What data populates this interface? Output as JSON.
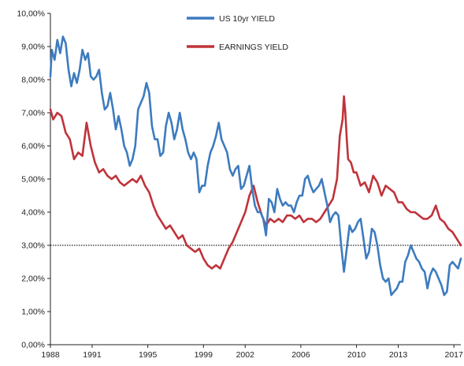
{
  "chart_data": {
    "type": "line",
    "title": "",
    "xlabel": "",
    "ylabel": "",
    "ylim": [
      0,
      10
    ],
    "y_ticks": [
      {
        "value": 0,
        "label": "0,00%"
      },
      {
        "value": 1,
        "label": "1,00%"
      },
      {
        "value": 2,
        "label": "2,00%"
      },
      {
        "value": 3,
        "label": "3,00%"
      },
      {
        "value": 4,
        "label": "4,00%"
      },
      {
        "value": 5,
        "label": "5,00%"
      },
      {
        "value": 6,
        "label": "6,00%"
      },
      {
        "value": 7,
        "label": "7,00%"
      },
      {
        "value": 8,
        "label": "8,00%"
      },
      {
        "value": 9,
        "label": "9,00%"
      },
      {
        "value": 10,
        "label": "10,00%"
      }
    ],
    "xlim": [
      1988,
      2017.5
    ],
    "x_ticks": [
      {
        "value": 1988,
        "label": "1988"
      },
      {
        "value": 1991,
        "label": "1991"
      },
      {
        "value": 1995,
        "label": "1995"
      },
      {
        "value": 1999,
        "label": "1999"
      },
      {
        "value": 2002,
        "label": "2002"
      },
      {
        "value": 2006,
        "label": "2006"
      },
      {
        "value": 2010,
        "label": "2010"
      },
      {
        "value": 2013,
        "label": "2013"
      },
      {
        "value": 2017,
        "label": "2017"
      }
    ],
    "grid": false,
    "legend_position": "top-center",
    "reference_line": {
      "y": 3.0,
      "style": "dotted",
      "color": "#222222"
    },
    "series": [
      {
        "name": "US 10yr YIELD",
        "color": "#3d7bbf",
        "x": [
          1988.0,
          1988.1,
          1988.3,
          1988.5,
          1988.7,
          1988.9,
          1989.1,
          1989.3,
          1989.5,
          1989.7,
          1989.9,
          1990.1,
          1990.3,
          1990.5,
          1990.7,
          1990.9,
          1991.1,
          1991.3,
          1991.5,
          1991.7,
          1991.9,
          1992.1,
          1992.3,
          1992.5,
          1992.7,
          1992.9,
          1993.1,
          1993.3,
          1993.5,
          1993.7,
          1993.9,
          1994.1,
          1994.3,
          1994.5,
          1994.7,
          1994.9,
          1995.1,
          1995.3,
          1995.5,
          1995.7,
          1995.9,
          1996.1,
          1996.3,
          1996.5,
          1996.7,
          1996.9,
          1997.1,
          1997.3,
          1997.5,
          1997.7,
          1997.9,
          1998.1,
          1998.3,
          1998.5,
          1998.7,
          1998.9,
          1999.1,
          1999.3,
          1999.5,
          1999.7,
          1999.9,
          2000.1,
          2000.3,
          2000.5,
          2000.7,
          2000.9,
          2001.1,
          2001.3,
          2001.5,
          2001.7,
          2001.9,
          2002.1,
          2002.3,
          2002.5,
          2002.7,
          2002.9,
          2003.1,
          2003.3,
          2003.5,
          2003.7,
          2003.9,
          2004.1,
          2004.3,
          2004.5,
          2004.7,
          2004.9,
          2005.1,
          2005.3,
          2005.5,
          2005.7,
          2005.9,
          2006.1,
          2006.3,
          2006.5,
          2006.7,
          2006.9,
          2007.1,
          2007.3,
          2007.5,
          2007.7,
          2007.9,
          2008.1,
          2008.3,
          2008.5,
          2008.7,
          2008.9,
          2009.1,
          2009.3,
          2009.5,
          2009.7,
          2009.9,
          2010.1,
          2010.3,
          2010.5,
          2010.7,
          2010.9,
          2011.1,
          2011.3,
          2011.5,
          2011.7,
          2011.9,
          2012.1,
          2012.3,
          2012.5,
          2012.7,
          2012.9,
          2013.1,
          2013.3,
          2013.5,
          2013.7,
          2013.9,
          2014.1,
          2014.3,
          2014.5,
          2014.7,
          2014.9,
          2015.1,
          2015.3,
          2015.5,
          2015.7,
          2015.9,
          2016.1,
          2016.3,
          2016.5,
          2016.7,
          2016.9,
          2017.1,
          2017.3,
          2017.5
        ],
        "values": [
          8.1,
          8.9,
          8.6,
          9.2,
          8.8,
          9.3,
          9.1,
          8.3,
          7.8,
          8.2,
          7.9,
          8.3,
          8.9,
          8.6,
          8.8,
          8.1,
          8.0,
          8.1,
          8.3,
          7.6,
          7.1,
          7.2,
          7.6,
          7.1,
          6.5,
          6.9,
          6.5,
          6.0,
          5.8,
          5.4,
          5.6,
          6.0,
          7.1,
          7.3,
          7.5,
          7.9,
          7.6,
          6.6,
          6.2,
          6.2,
          5.7,
          5.8,
          6.6,
          7.0,
          6.7,
          6.2,
          6.5,
          7.0,
          6.5,
          6.2,
          5.8,
          5.6,
          5.8,
          5.6,
          4.6,
          4.8,
          4.8,
          5.4,
          5.8,
          6.0,
          6.3,
          6.7,
          6.2,
          6.0,
          5.8,
          5.3,
          5.1,
          5.3,
          5.4,
          4.7,
          4.8,
          5.1,
          5.4,
          4.7,
          4.2,
          4.0,
          4.0,
          3.8,
          3.3,
          4.4,
          4.3,
          4.0,
          4.7,
          4.4,
          4.2,
          4.3,
          4.2,
          4.2,
          4.0,
          4.3,
          4.5,
          4.5,
          5.0,
          5.1,
          4.8,
          4.6,
          4.7,
          4.8,
          5.0,
          4.6,
          4.2,
          3.7,
          3.9,
          4.0,
          3.9,
          3.0,
          2.2,
          2.9,
          3.6,
          3.4,
          3.5,
          3.7,
          3.8,
          3.2,
          2.6,
          2.8,
          3.5,
          3.4,
          3.0,
          2.4,
          2.0,
          1.9,
          2.0,
          1.5,
          1.6,
          1.7,
          1.9,
          1.9,
          2.5,
          2.7,
          3.0,
          2.8,
          2.6,
          2.5,
          2.3,
          2.2,
          1.7,
          2.1,
          2.3,
          2.2,
          2.0,
          1.8,
          1.5,
          1.6,
          2.4,
          2.5,
          2.4,
          2.3,
          2.6
        ]
      },
      {
        "name": "EARNINGS YIELD",
        "color": "#c0333a",
        "x": [
          1988.0,
          1988.2,
          1988.5,
          1988.8,
          1989.1,
          1989.4,
          1989.7,
          1990.0,
          1990.3,
          1990.6,
          1990.9,
          1991.2,
          1991.5,
          1991.8,
          1992.1,
          1992.4,
          1992.7,
          1993.0,
          1993.3,
          1993.6,
          1993.9,
          1994.2,
          1994.5,
          1994.8,
          1995.1,
          1995.4,
          1995.7,
          1996.0,
          1996.3,
          1996.6,
          1996.9,
          1997.2,
          1997.5,
          1997.8,
          1998.1,
          1998.4,
          1998.7,
          1999.0,
          1999.3,
          1999.6,
          1999.9,
          2000.2,
          2000.5,
          2000.8,
          2001.1,
          2001.4,
          2001.7,
          2002.0,
          2002.3,
          2002.6,
          2002.9,
          2003.2,
          2003.5,
          2003.8,
          2004.1,
          2004.4,
          2004.7,
          2005.0,
          2005.3,
          2005.6,
          2005.9,
          2006.2,
          2006.5,
          2006.8,
          2007.1,
          2007.4,
          2007.7,
          2008.0,
          2008.3,
          2008.6,
          2008.8,
          2009.0,
          2009.1,
          2009.2,
          2009.3,
          2009.4,
          2009.6,
          2009.8,
          2010.0,
          2010.3,
          2010.6,
          2010.9,
          2011.2,
          2011.5,
          2011.8,
          2012.1,
          2012.4,
          2012.7,
          2013.0,
          2013.3,
          2013.6,
          2013.9,
          2014.2,
          2014.5,
          2014.8,
          2015.1,
          2015.4,
          2015.7,
          2016.0,
          2016.3,
          2016.6,
          2016.9,
          2017.2,
          2017.5
        ],
        "values": [
          7.1,
          6.8,
          7.0,
          6.9,
          6.4,
          6.2,
          5.6,
          5.8,
          5.7,
          6.7,
          6.0,
          5.5,
          5.2,
          5.3,
          5.1,
          5.0,
          5.1,
          4.9,
          4.8,
          4.9,
          5.0,
          4.9,
          5.1,
          4.8,
          4.6,
          4.2,
          3.9,
          3.7,
          3.5,
          3.6,
          3.4,
          3.2,
          3.3,
          3.0,
          2.9,
          2.8,
          2.9,
          2.6,
          2.4,
          2.3,
          2.4,
          2.3,
          2.6,
          2.9,
          3.1,
          3.4,
          3.7,
          4.0,
          4.5,
          4.8,
          4.3,
          3.9,
          3.6,
          3.8,
          3.7,
          3.8,
          3.7,
          3.9,
          3.9,
          3.8,
          3.9,
          3.7,
          3.8,
          3.8,
          3.7,
          3.8,
          4.0,
          4.2,
          4.4,
          5.0,
          6.3,
          6.8,
          7.5,
          7.0,
          6.2,
          5.6,
          5.5,
          5.2,
          5.2,
          4.8,
          4.9,
          4.6,
          5.1,
          4.9,
          4.5,
          4.8,
          4.7,
          4.6,
          4.3,
          4.3,
          4.1,
          4.0,
          4.0,
          3.9,
          3.8,
          3.8,
          3.9,
          4.2,
          3.8,
          3.7,
          3.5,
          3.4,
          3.2,
          3.0
        ]
      }
    ]
  }
}
